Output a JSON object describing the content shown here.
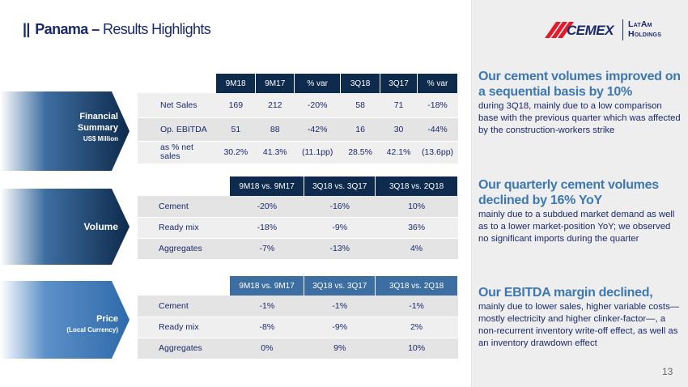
{
  "title": {
    "bars": "||",
    "bold": "Panama –",
    "rest": "Results Highlights"
  },
  "logo": {
    "brand": "CEMEX",
    "sub_line1": "LatAm",
    "sub_line2": "Holdings"
  },
  "sections": {
    "financial": {
      "label_line1": "Financial",
      "label_line2": "Summary",
      "label_sub": "US$ Million"
    },
    "volume": {
      "label": "Volume"
    },
    "price": {
      "label": "Price",
      "label_sub": "(Local Currency)"
    }
  },
  "financial_table": {
    "headers": [
      "9M18",
      "9M17",
      "% var",
      "3Q18",
      "3Q17",
      "% var"
    ],
    "rows": [
      {
        "label": "Net Sales",
        "values": [
          "169",
          "212",
          "-20%",
          "58",
          "71",
          "-18%"
        ]
      },
      {
        "label": "Op. EBITDA",
        "values": [
          "51",
          "88",
          "-42%",
          "16",
          "30",
          "-44%"
        ]
      },
      {
        "label_line1": "as % net",
        "label_line2": "sales",
        "values": [
          "30.2%",
          "41.3%",
          "(11.1pp)",
          "28.5%",
          "42.1%",
          "(13.6pp)"
        ]
      }
    ]
  },
  "volume_table": {
    "headers": [
      "9M18 vs. 9M17",
      "3Q18 vs. 3Q17",
      "3Q18 vs. 2Q18"
    ],
    "rows": [
      {
        "label": "Cement",
        "values": [
          "-20%",
          "-16%",
          "10%"
        ]
      },
      {
        "label": "Ready mix",
        "values": [
          "-18%",
          "-9%",
          "36%"
        ]
      },
      {
        "label": "Aggregates",
        "values": [
          "-7%",
          "-13%",
          "4%"
        ]
      }
    ]
  },
  "price_table": {
    "headers": [
      "9M18 vs. 9M17",
      "3Q18 vs. 3Q17",
      "3Q18 vs. 2Q18"
    ],
    "rows": [
      {
        "label": "Cement",
        "values": [
          "-1%",
          "-1%",
          "-1%"
        ]
      },
      {
        "label": "Ready mix",
        "values": [
          "-8%",
          "-9%",
          "2%"
        ]
      },
      {
        "label": "Aggregates",
        "values": [
          "0%",
          "9%",
          "10%"
        ]
      }
    ]
  },
  "highlights": [
    {
      "head": "Our cement volumes improved on a sequential basis by 10%",
      "body": "during 3Q18, mainly due to a low comparison base with the previous quarter which was affected by the construction-workers strike"
    },
    {
      "head": "Our quarterly cement volumes declined by 16% YoY",
      "body": "mainly due to a subdued market demand as well as to a lower market-position YoY; we observed no significant imports during the quarter"
    },
    {
      "head": "Our EBITDA margin declined,",
      "body": "mainly due to lower sales, higher variable costs—mostly electricity and higher clinker-factor—, a non-recurrent inventory write-off effect, as well as an inventory drawdown effect"
    }
  ],
  "page_number": "13",
  "colors": {
    "navy": "#1b2a6b",
    "header_dark": "#0e2a4c",
    "header_light": "#3d6ea1",
    "accent_blue": "#3d78b2",
    "logo_red": "#e3192c"
  }
}
